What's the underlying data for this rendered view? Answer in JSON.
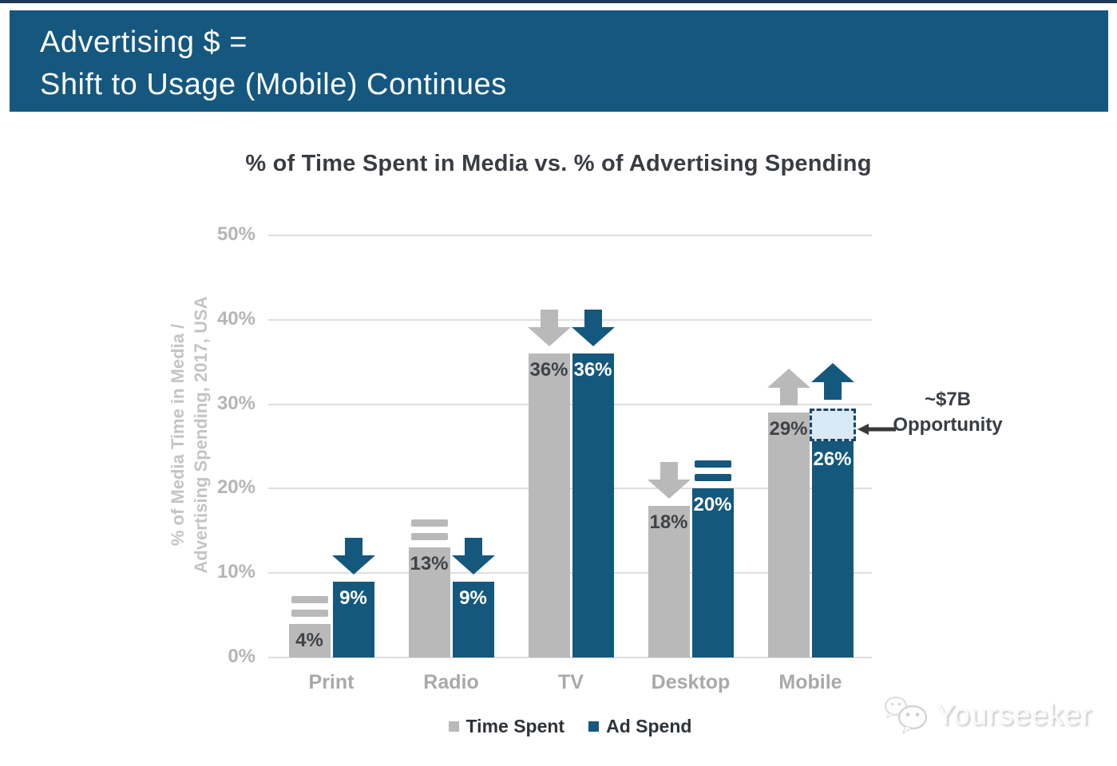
{
  "header": {
    "line1": "Advertising $ =",
    "line2": "Shift to Usage (Mobile) Continues"
  },
  "chart_data": {
    "type": "bar",
    "title": "% of Time Spent in Media vs. % of Advertising Spending",
    "ylabel": "% of Media Time in Media / Advertising Spending, 2017, USA",
    "ylabel_line1": "% of Media Time in Media /",
    "ylabel_line2": "Advertising Spending, 2017, USA",
    "categories": [
      "Print",
      "Radio",
      "TV",
      "Desktop",
      "Mobile"
    ],
    "series": [
      {
        "name": "Time Spent",
        "color": "#b9b9b9",
        "label_color": "#3f4347",
        "values": [
          4,
          13,
          36,
          18,
          29
        ],
        "trends": [
          "equal",
          "equal",
          "down",
          "down",
          "up"
        ]
      },
      {
        "name": "Ad Spend",
        "color": "#14587e",
        "label_color": "#ffffff",
        "values": [
          9,
          9,
          36,
          20,
          26
        ],
        "trends": [
          "down",
          "down",
          "down",
          "equal",
          "up"
        ]
      }
    ],
    "value_suffix": "%",
    "yticks": [
      0,
      10,
      20,
      30,
      40,
      50
    ],
    "ylim": [
      0,
      50
    ],
    "grid": true,
    "legend_position": "bottom",
    "annotation": {
      "line1": "~$7B",
      "line2": "Opportunity",
      "category": "Mobile",
      "series": "Ad Spend",
      "from_value": 26,
      "to_value": 29.5,
      "box_fill": "#d9eaf6",
      "box_border": "#1e4466",
      "arrow_color": "#3a3a3a"
    }
  },
  "watermark": {
    "text": "Yourseeker"
  }
}
